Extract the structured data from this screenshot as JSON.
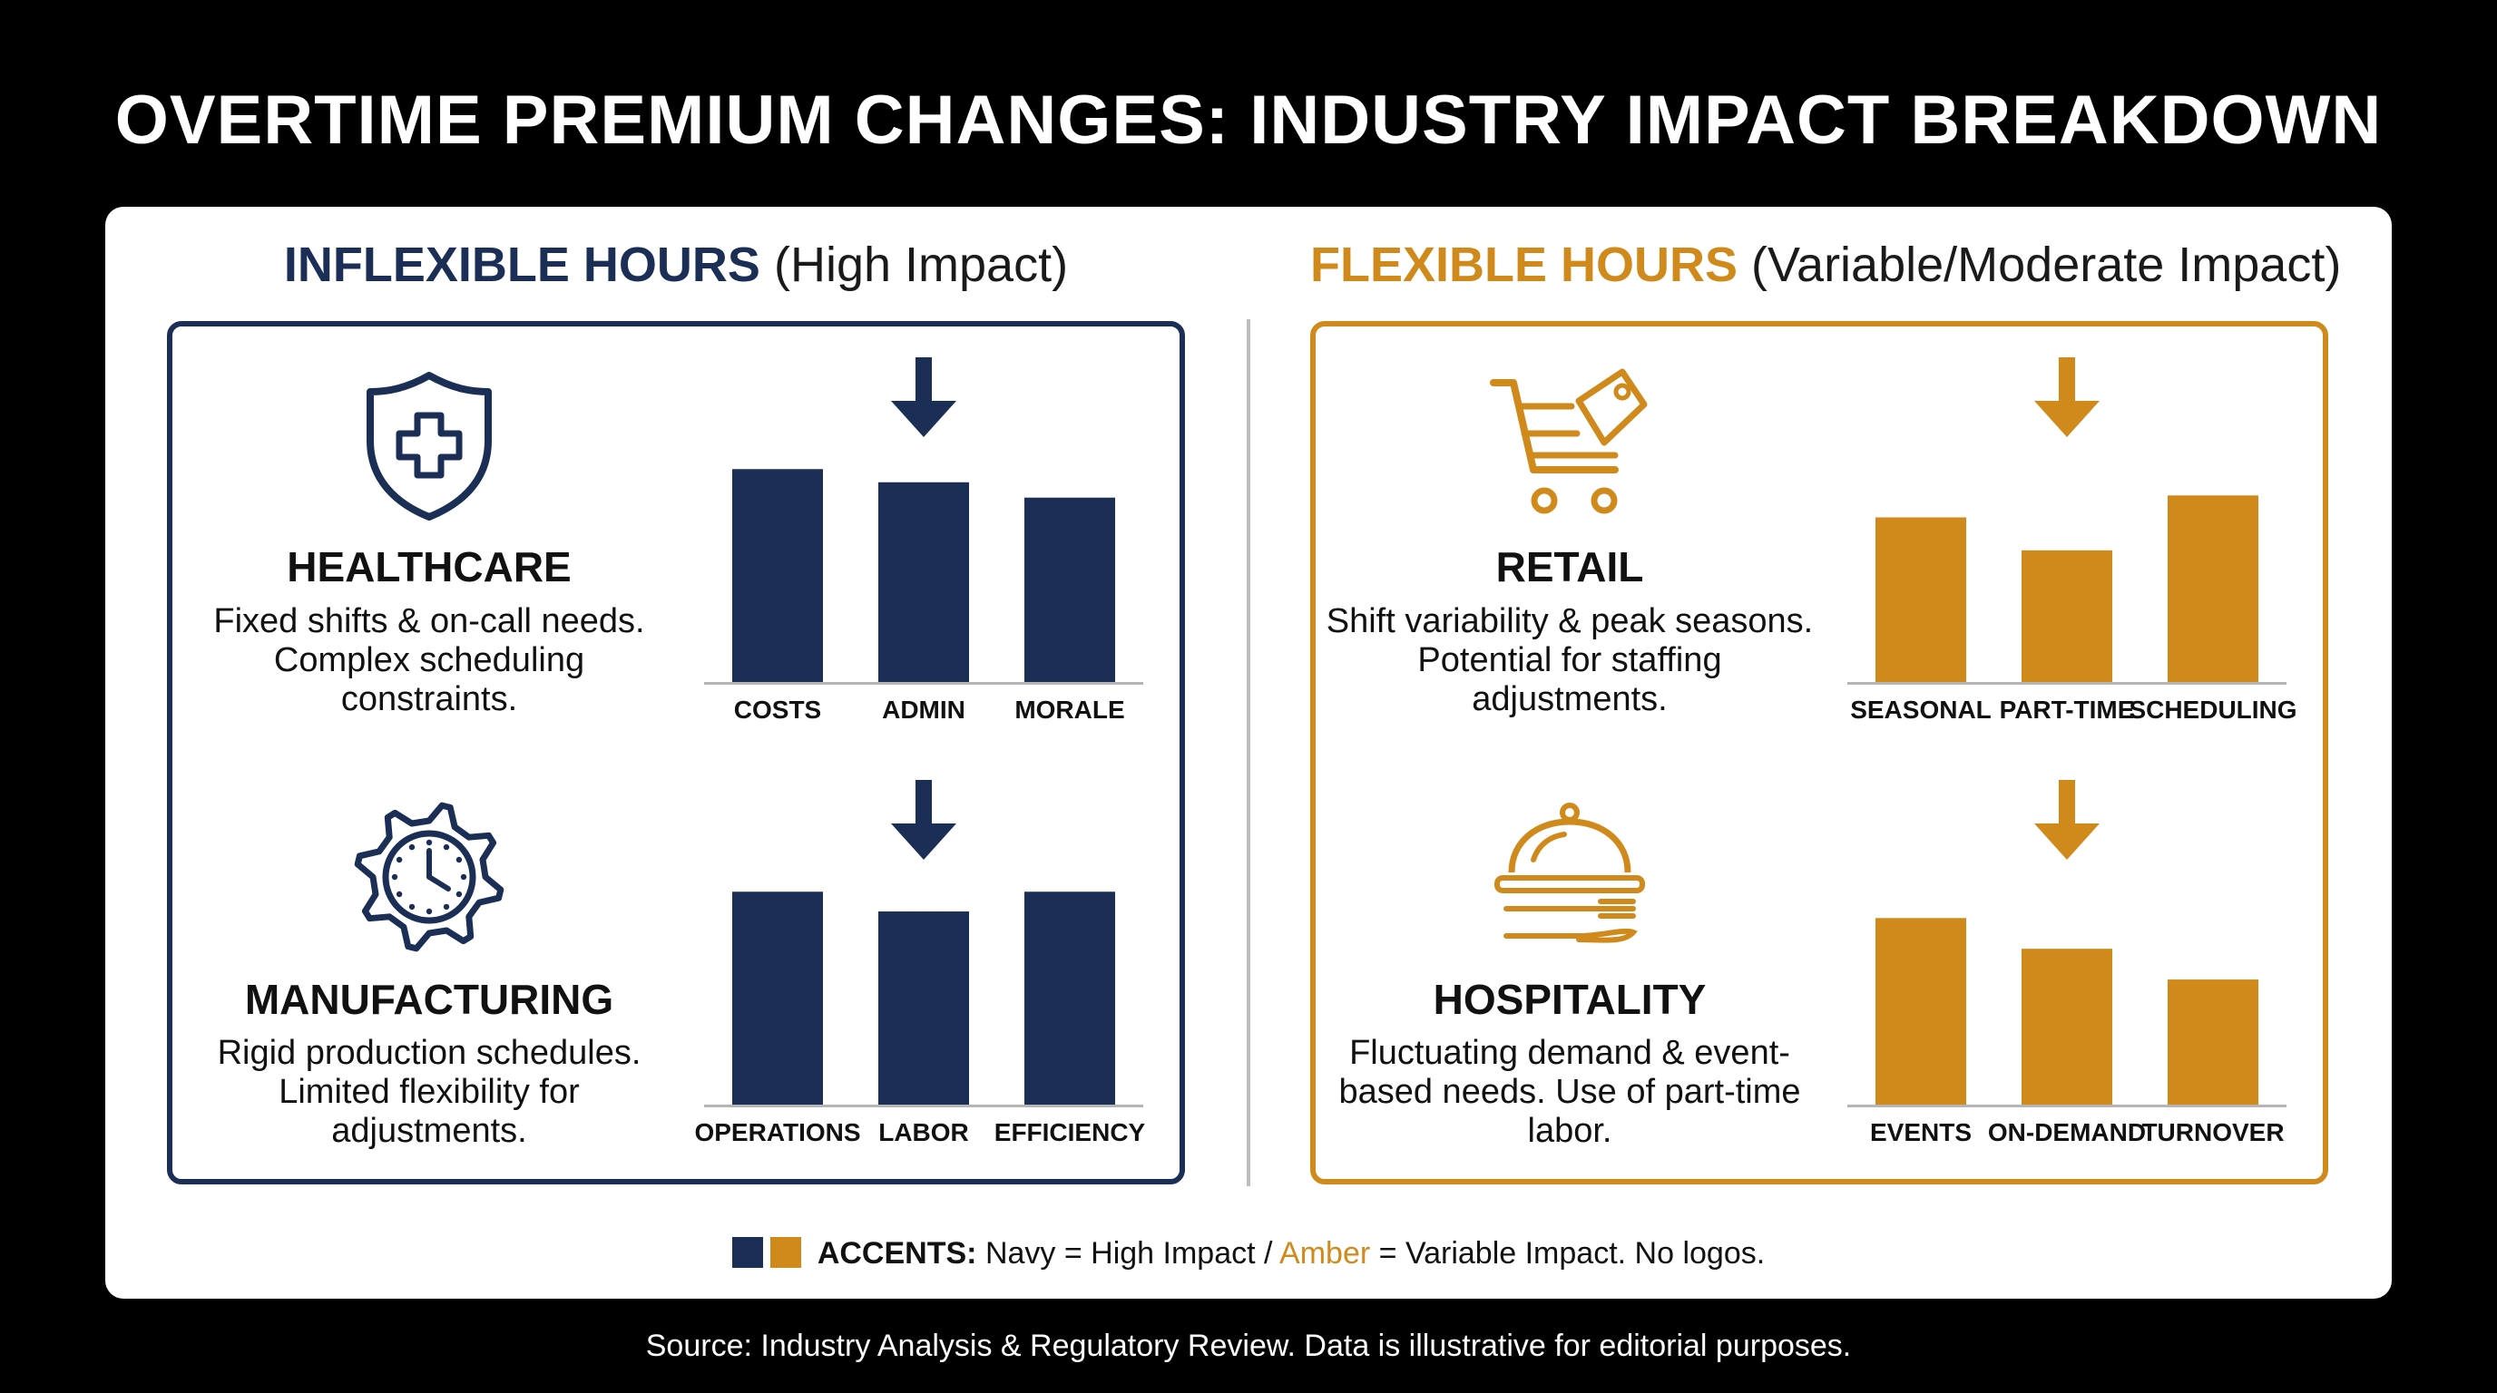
{
  "title": "OVERTIME PREMIUM CHANGES: INDUSTRY IMPACT BREAKDOWN",
  "columns": {
    "inflexible": {
      "heading": "INFLEXIBLE HOURS",
      "subheading": "(High Impact)",
      "color": "#1b2e55"
    },
    "flexible": {
      "heading": "FLEXIBLE HOURS",
      "subheading": "(Variable/Moderate Impact)",
      "color": "#d08a1c"
    }
  },
  "industries": {
    "healthcare": {
      "name": "HEALTHCARE",
      "icon": "shield-medical-cross-icon",
      "description": "Fixed shifts & on-call needs. Complex scheduling constraints."
    },
    "manufacturing": {
      "name": "MANUFACTURING",
      "icon": "gear-clock-icon",
      "description": "Rigid production schedules. Limited flexibility for adjustments."
    },
    "retail": {
      "name": "RETAIL",
      "icon": "shopping-cart-tag-icon",
      "description": "Shift variability & peak seasons. Potential for staffing adjustments."
    },
    "hospitality": {
      "name": "HOSPITALITY",
      "icon": "cloche-cutlery-icon",
      "description": "Fluctuating demand & event-based needs. Use of part-time labor."
    }
  },
  "chart_data": [
    {
      "type": "bar",
      "color": "#1b2e55",
      "trend_arrow": "down",
      "categories": [
        "COSTS",
        "ADMIN",
        "MORALE"
      ],
      "values": [
        97,
        91,
        84
      ],
      "ylim": [
        0,
        100
      ]
    },
    {
      "type": "bar",
      "color": "#1b2e55",
      "trend_arrow": "down",
      "categories": [
        "OPERATIONS",
        "LABOR",
        "EFFICIENCY"
      ],
      "values": [
        97,
        88,
        97
      ],
      "ylim": [
        0,
        100
      ]
    },
    {
      "type": "bar",
      "color": "#d08a1c",
      "trend_arrow": "down",
      "categories": [
        "SEASONAL",
        "PART-TIME",
        "SCHEDULING"
      ],
      "values": [
        75,
        60,
        85
      ],
      "ylim": [
        0,
        100
      ]
    },
    {
      "type": "bar",
      "color": "#d08a1c",
      "trend_arrow": "down",
      "categories": [
        "EVENTS",
        "ON-DEMAND",
        "TURNOVER"
      ],
      "values": [
        85,
        71,
        57
      ],
      "ylim": [
        0,
        100
      ]
    }
  ],
  "legend": {
    "label": "ACCENTS:",
    "navy_text": "Navy = High Impact /",
    "amber_text": "Amber",
    "rest_text": "= Variable Impact. No logos."
  },
  "source": "Source: Industry Analysis & Regulatory Review. Data is illustrative for editorial purposes."
}
